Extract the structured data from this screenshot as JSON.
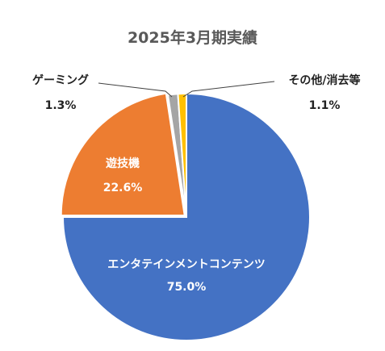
{
  "chart_data": {
    "type": "pie",
    "title": "2025年3月期実績",
    "slices": [
      {
        "name": "エンタテインメントコンテンツ",
        "value": 75.0,
        "label": "75.0%",
        "color": "#4472C4"
      },
      {
        "name": "遊技機",
        "value": 22.6,
        "label": "22.6%",
        "color": "#ED7D31"
      },
      {
        "name": "ゲーミング",
        "value": 1.3,
        "label": "1.3%",
        "color": "#A5A5A5"
      },
      {
        "name": "その他/消去等",
        "value": 1.1,
        "label": "1.1%",
        "color": "#FFC000"
      }
    ],
    "start": "12 o'clock",
    "direction": "clockwise",
    "legend": "none"
  }
}
